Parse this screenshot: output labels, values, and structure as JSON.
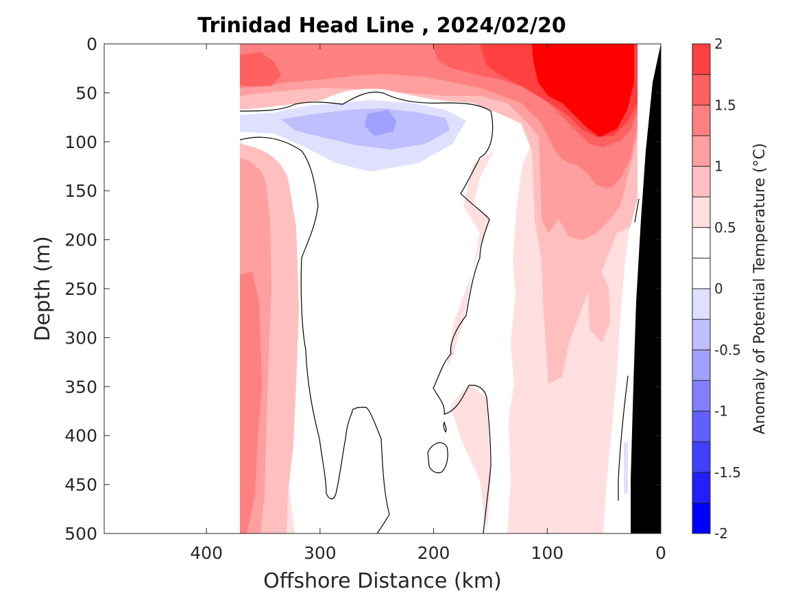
{
  "chart_data": {
    "type": "heatmap",
    "title": "Trinidad Head Line , 2024/02/20",
    "xlabel": "Offshore Distance (km)",
    "ylabel": "Depth (m)",
    "xlim": [
      490,
      0
    ],
    "ylim": [
      0,
      500
    ],
    "x_reversed": true,
    "y_reversed": true,
    "x_ticks": [
      400,
      300,
      200,
      100,
      0
    ],
    "y_ticks": [
      0,
      50,
      100,
      150,
      200,
      250,
      300,
      350,
      400,
      450,
      500
    ],
    "colorbar": {
      "label": "Anomaly of Potential Temperature (°C)",
      "range": [
        -2,
        2
      ],
      "tick_values": [
        -2,
        -1.5,
        -1,
        -0.5,
        0,
        0.5,
        1,
        1.5,
        2
      ],
      "tick_labels": [
        "-2",
        "-1.5",
        "-1",
        "-0.5",
        "0",
        "0.5",
        "1",
        "1.5",
        "2"
      ],
      "levels": [
        -2,
        -1.75,
        -1.5,
        -1.25,
        -1,
        -0.75,
        -0.5,
        -0.25,
        0,
        0.25,
        0.5,
        0.75,
        1,
        1.25,
        1.5,
        1.75,
        2
      ],
      "colors": [
        "#0000ff",
        "#2020ff",
        "#4040ff",
        "#6060ff",
        "#8080ff",
        "#a0a0ff",
        "#bfbfff",
        "#dfdfff",
        "#ffffff",
        "#ffffff",
        "#ffdfdf",
        "#ffbfbf",
        "#ff9f9f",
        "#ff8080",
        "#ff6060",
        "#ff4040",
        "#ff0000"
      ]
    },
    "data_extent_km": [
      370,
      0
    ],
    "bathymetry_color": "#000000",
    "zero_contour_color": "#000000"
  }
}
